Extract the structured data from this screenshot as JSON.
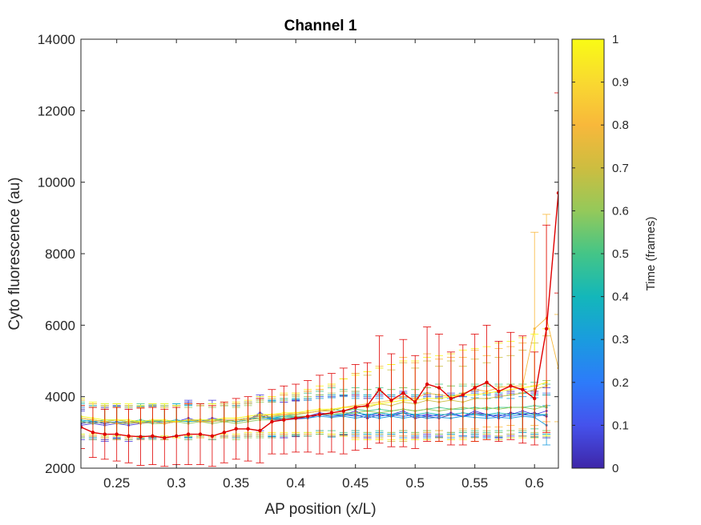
{
  "chart_data": {
    "type": "line",
    "title": "Channel 1",
    "xlabel": "AP position (x/L)",
    "ylabel": "Cyto fluorescence (au)",
    "xlim": [
      0.22,
      0.62
    ],
    "ylim": [
      2000,
      14000
    ],
    "x_ticks": [
      "0.25",
      "0.3",
      "0.35",
      "0.4",
      "0.45",
      "0.5",
      "0.55",
      "0.6"
    ],
    "y_ticks": [
      "2000",
      "4000",
      "6000",
      "8000",
      "10000",
      "12000",
      "14000"
    ],
    "grid": false,
    "error_bars": true,
    "colorbar": {
      "label": "Time (frames)",
      "ticks": [
        "0",
        "0.1",
        "0.2",
        "0.3",
        "0.4",
        "0.5",
        "0.6",
        "0.7",
        "0.8",
        "0.9",
        "1"
      ],
      "range": [
        0,
        1
      ],
      "colormap": "parula",
      "stops": [
        "#3E26A8",
        "#4552EC",
        "#2D7BFA",
        "#1A9CDE",
        "#13B7BA",
        "#44C587",
        "#94C95A",
        "#CDBD40",
        "#F8B83B",
        "#F9D930",
        "#F9FB15"
      ]
    },
    "x": [
      0.22,
      0.23,
      0.24,
      0.25,
      0.26,
      0.27,
      0.28,
      0.29,
      0.3,
      0.31,
      0.32,
      0.33,
      0.34,
      0.35,
      0.36,
      0.37,
      0.38,
      0.39,
      0.4,
      0.41,
      0.42,
      0.43,
      0.44,
      0.45,
      0.46,
      0.47,
      0.48,
      0.49,
      0.5,
      0.51,
      0.52,
      0.53,
      0.54,
      0.55,
      0.56,
      0.57,
      0.58,
      0.59,
      0.6,
      0.61,
      0.62
    ],
    "series": [
      {
        "time": 0.0,
        "color": "#3E26A8",
        "y": [
          3250,
          3300,
          3250,
          3300,
          3250,
          3280,
          3300,
          3250,
          3300,
          3350,
          3350,
          3300,
          3350,
          3300,
          3350,
          3500,
          3350,
          3350,
          3380,
          3400,
          3500,
          3450,
          3480,
          3500,
          3400,
          3500,
          3450,
          3550,
          3400,
          3450,
          3400,
          3500,
          3450,
          3550,
          3500,
          3450,
          3550,
          3500,
          3550,
          3450,
          null
        ],
        "err": [
          400,
          450,
          450,
          450,
          450,
          450,
          450,
          450,
          450,
          500,
          450,
          500,
          450,
          450,
          450,
          500,
          500,
          500,
          500,
          500,
          500,
          550,
          550,
          550,
          550,
          550,
          550,
          550,
          550,
          550,
          550,
          550,
          550,
          600,
          600,
          600,
          600,
          600,
          600,
          600,
          null
        ]
      },
      {
        "time": 0.1,
        "color": "#4A3CDC",
        "y": [
          3200,
          3250,
          3200,
          3250,
          3200,
          3250,
          3300,
          3250,
          3300,
          3400,
          3300,
          3400,
          3350,
          3300,
          3350,
          3550,
          3400,
          3350,
          3400,
          3450,
          3550,
          3500,
          3500,
          3600,
          3450,
          3550,
          3500,
          3600,
          3450,
          3500,
          3450,
          3550,
          3450,
          3600,
          3500,
          3400,
          3500,
          3600,
          3500,
          3600,
          null
        ],
        "err": [
          400,
          450,
          450,
          450,
          450,
          450,
          450,
          450,
          450,
          500,
          450,
          500,
          450,
          450,
          450,
          500,
          500,
          500,
          500,
          500,
          500,
          550,
          550,
          550,
          550,
          550,
          550,
          550,
          550,
          550,
          550,
          550,
          550,
          600,
          600,
          600,
          600,
          600,
          600,
          650,
          null
        ]
      },
      {
        "time": 0.2,
        "color": "#2D7BFA",
        "y": [
          3300,
          3250,
          3300,
          3250,
          3300,
          3250,
          3280,
          3300,
          3350,
          3300,
          3350,
          3300,
          3350,
          3350,
          3400,
          3450,
          3400,
          3400,
          3420,
          3450,
          3500,
          3450,
          3500,
          3450,
          3500,
          3450,
          3500,
          3450,
          3500,
          3450,
          3500,
          3500,
          3450,
          3500,
          3450,
          3500,
          3450,
          3500,
          3450,
          3500,
          null
        ],
        "err": [
          400,
          450,
          450,
          450,
          450,
          450,
          450,
          450,
          450,
          500,
          450,
          500,
          450,
          450,
          450,
          500,
          500,
          500,
          500,
          500,
          500,
          550,
          550,
          550,
          550,
          550,
          550,
          550,
          550,
          550,
          550,
          550,
          550,
          600,
          600,
          600,
          600,
          600,
          600,
          600,
          null
        ]
      },
      {
        "time": 0.3,
        "color": "#1A9CDE",
        "y": [
          3300,
          3350,
          3300,
          3280,
          3300,
          3280,
          3320,
          3300,
          3300,
          3320,
          3300,
          3350,
          3300,
          3350,
          3400,
          3400,
          3380,
          3400,
          3420,
          3400,
          3450,
          3420,
          3450,
          3400,
          3450,
          3400,
          3450,
          3400,
          3450,
          3400,
          3420,
          3400,
          3450,
          3420,
          3400,
          3420,
          3400,
          3450,
          3420,
          3200,
          null
        ],
        "err": [
          450,
          450,
          450,
          450,
          450,
          450,
          450,
          450,
          450,
          450,
          450,
          450,
          450,
          450,
          450,
          500,
          500,
          500,
          500,
          500,
          500,
          550,
          550,
          550,
          550,
          550,
          550,
          550,
          550,
          550,
          550,
          550,
          550,
          550,
          550,
          550,
          550,
          550,
          550,
          550,
          null
        ]
      },
      {
        "time": 0.4,
        "color": "#13B7BA",
        "y": [
          3350,
          3300,
          3350,
          3350,
          3300,
          3300,
          3350,
          3300,
          3350,
          3300,
          3350,
          3350,
          3300,
          3350,
          3400,
          3450,
          3400,
          3450,
          3450,
          3450,
          3500,
          3500,
          3500,
          3550,
          3500,
          3550,
          3500,
          3550,
          3500,
          3550,
          3500,
          3500,
          3550,
          3500,
          3500,
          3550,
          3500,
          3550,
          3500,
          3500,
          null
        ],
        "err": [
          450,
          450,
          450,
          450,
          450,
          450,
          450,
          450,
          450,
          450,
          450,
          450,
          450,
          450,
          450,
          500,
          500,
          500,
          500,
          500,
          550,
          550,
          550,
          550,
          550,
          550,
          550,
          550,
          550,
          550,
          550,
          550,
          550,
          550,
          550,
          550,
          550,
          550,
          550,
          550,
          null
        ]
      },
      {
        "time": 0.5,
        "color": "#44C587",
        "y": [
          3400,
          3350,
          3300,
          3350,
          3300,
          3350,
          3300,
          3350,
          3300,
          3350,
          3300,
          3350,
          3350,
          3300,
          3350,
          3400,
          3450,
          3450,
          3500,
          3550,
          3600,
          3650,
          3600,
          3650,
          3600,
          3650,
          3600,
          3650,
          3600,
          3650,
          3700,
          3650,
          3650,
          3700,
          3650,
          3700,
          3700,
          3700,
          3750,
          3700,
          null
        ],
        "err": [
          450,
          450,
          450,
          450,
          450,
          450,
          450,
          450,
          450,
          450,
          450,
          450,
          450,
          450,
          450,
          500,
          500,
          500,
          550,
          550,
          550,
          600,
          600,
          600,
          600,
          600,
          600,
          600,
          600,
          600,
          650,
          650,
          650,
          650,
          650,
          650,
          650,
          650,
          650,
          650,
          null
        ]
      },
      {
        "time": 0.6,
        "color": "#94C95A",
        "y": [
          3300,
          3250,
          3300,
          3250,
          3250,
          3300,
          3250,
          3250,
          3300,
          3250,
          3300,
          3250,
          3300,
          3250,
          3300,
          3350,
          3350,
          3400,
          3450,
          3450,
          3500,
          3500,
          3550,
          3550,
          3600,
          3550,
          3600,
          3650,
          3600,
          3650,
          3600,
          3650,
          3700,
          3650,
          3700,
          3650,
          3700,
          3700,
          3650,
          3750,
          null
        ],
        "err": [
          450,
          450,
          450,
          450,
          450,
          450,
          450,
          450,
          450,
          450,
          450,
          450,
          450,
          450,
          450,
          500,
          500,
          500,
          550,
          550,
          550,
          600,
          600,
          600,
          600,
          600,
          600,
          600,
          600,
          600,
          650,
          650,
          650,
          650,
          650,
          650,
          650,
          650,
          650,
          700,
          null
        ]
      },
      {
        "time": 0.7,
        "color": "#CDBD40",
        "y": [
          3400,
          3350,
          3300,
          3350,
          3300,
          3300,
          3350,
          3300,
          3300,
          3350,
          3300,
          3350,
          3300,
          3350,
          3350,
          3400,
          3450,
          3500,
          3500,
          3550,
          3600,
          3600,
          3700,
          3750,
          3700,
          3800,
          3750,
          3850,
          3800,
          3900,
          3850,
          3900,
          3850,
          3950,
          3950,
          4000,
          4050,
          4100,
          4200,
          4300,
          null
        ],
        "err": [
          500,
          450,
          450,
          450,
          450,
          450,
          450,
          450,
          450,
          450,
          450,
          450,
          450,
          450,
          450,
          500,
          500,
          550,
          550,
          600,
          600,
          700,
          800,
          900,
          900,
          1000,
          1000,
          1100,
          1000,
          1100,
          1000,
          1100,
          1000,
          1100,
          1000,
          1100,
          1100,
          1200,
          1300,
          1400,
          null
        ]
      },
      {
        "time": 0.8,
        "color": "#F8B83B",
        "y": [
          3400,
          3350,
          3300,
          3250,
          3300,
          3250,
          3300,
          3250,
          3300,
          3350,
          3300,
          3300,
          3350,
          3350,
          3400,
          3450,
          3500,
          3500,
          3550,
          3550,
          3600,
          3650,
          3700,
          3750,
          3800,
          3850,
          3900,
          4000,
          3950,
          4100,
          4050,
          4000,
          4100,
          4200,
          4150,
          4250,
          4300,
          4300,
          5900,
          6200,
          4800
        ],
        "err": [
          500,
          450,
          450,
          450,
          450,
          450,
          450,
          450,
          450,
          450,
          450,
          450,
          450,
          450,
          450,
          500,
          500,
          550,
          550,
          600,
          600,
          700,
          800,
          900,
          900,
          1000,
          1000,
          1100,
          1000,
          1100,
          1000,
          1100,
          1000,
          1100,
          1000,
          1100,
          1100,
          1200,
          2700,
          2900,
          1500
        ]
      },
      {
        "time": 1.0,
        "color": "#F9FB15",
        "y": [
          3450,
          3400,
          3350,
          3350,
          3350,
          3300,
          3350,
          3350,
          3300,
          3350,
          3350,
          3350,
          3400,
          3400,
          3450,
          3500,
          3500,
          3550,
          3550,
          3600,
          3650,
          3650,
          3700,
          3700,
          3750,
          3800,
          3850,
          3900,
          3900,
          3950,
          3950,
          4000,
          4050,
          4050,
          4100,
          4150,
          4200,
          4250,
          4300,
          4400,
          null
        ],
        "err": [
          500,
          450,
          450,
          450,
          450,
          450,
          450,
          450,
          450,
          450,
          450,
          450,
          450,
          450,
          450,
          500,
          500,
          550,
          550,
          600,
          650,
          700,
          800,
          900,
          950,
          1000,
          1050,
          1100,
          1100,
          1150,
          1200,
          1200,
          1250,
          1300,
          1300,
          1350,
          1350,
          1400,
          1450,
          1500,
          null
        ]
      },
      {
        "name": "",
        "time": 0.95,
        "color": "#E00000",
        "highlight": true,
        "y": [
          3150,
          3000,
          2950,
          2950,
          2900,
          2880,
          2900,
          2850,
          2900,
          2950,
          2950,
          2900,
          3000,
          3100,
          3100,
          3050,
          3300,
          3350,
          3400,
          3450,
          3500,
          3550,
          3600,
          3700,
          3750,
          4200,
          3900,
          4100,
          3850,
          4350,
          4250,
          3950,
          4050,
          4250,
          4400,
          4150,
          4300,
          4200,
          3950,
          5900,
          9700
        ],
        "err": [
          600,
          700,
          700,
          750,
          750,
          800,
          800,
          800,
          800,
          850,
          850,
          850,
          850,
          850,
          900,
          900,
          900,
          950,
          950,
          1000,
          1100,
          1100,
          1200,
          1200,
          1200,
          1500,
          1300,
          1500,
          1300,
          1600,
          1500,
          1300,
          1400,
          1500,
          1600,
          1400,
          1500,
          1500,
          1300,
          2900,
          2800
        ]
      }
    ]
  }
}
